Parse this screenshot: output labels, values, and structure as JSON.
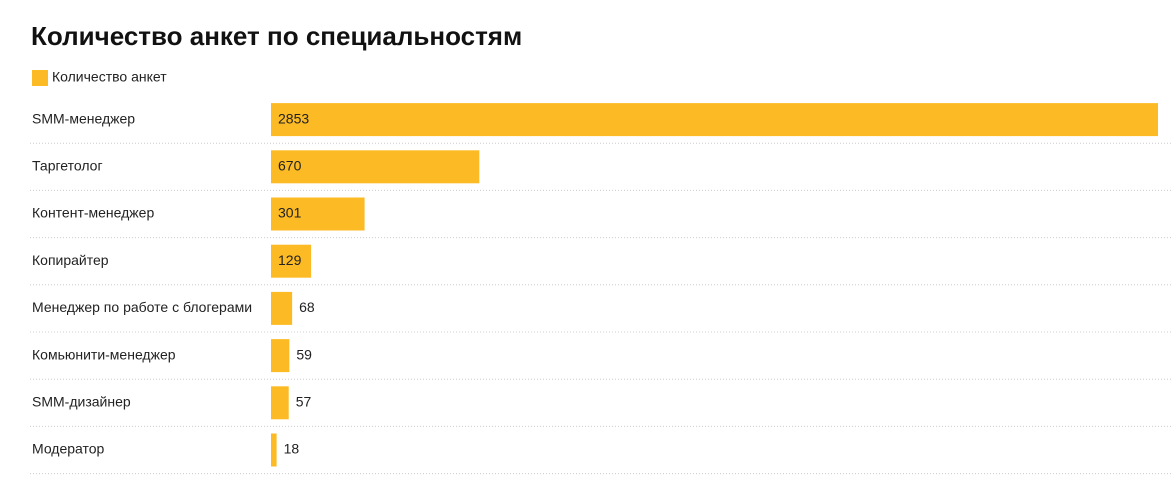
{
  "chart_data": {
    "type": "bar",
    "orientation": "horizontal",
    "title": "Количество анкет по специальностям",
    "categories": [
      "SMM-менеджер",
      "Таргетолог",
      "Контент-менеджер",
      "Копирайтер",
      "Менеджер по работе с блогерами",
      "Комьюнити-менеджер",
      "SMM-дизайнер",
      "Модератор"
    ],
    "series": [
      {
        "name": "Количество анкет",
        "color": "#fcbb24",
        "values": [
          2853,
          670,
          301,
          129,
          68,
          59,
          57,
          18
        ]
      }
    ]
  }
}
